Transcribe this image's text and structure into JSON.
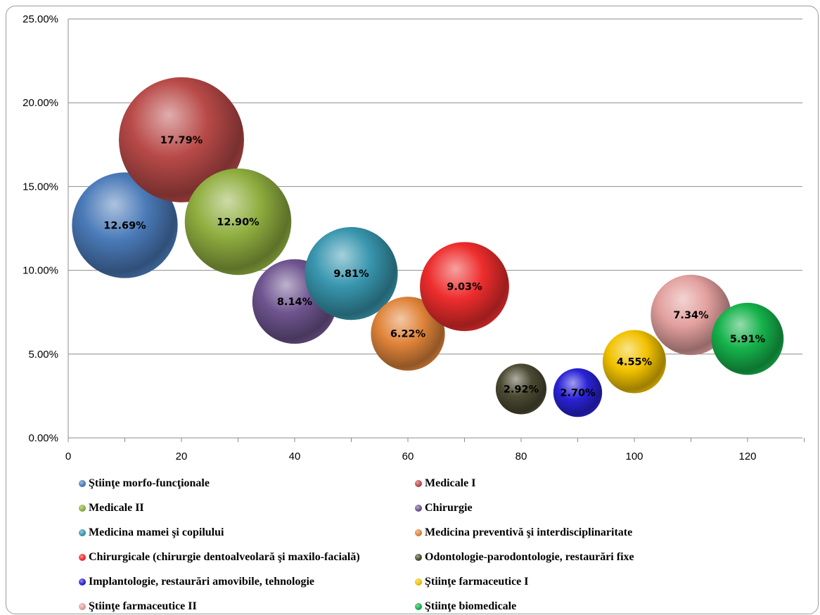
{
  "chart_data": {
    "type": "bubble",
    "title": "",
    "xlabel": "",
    "ylabel": "",
    "xlim": [
      0,
      130
    ],
    "ylim": [
      0,
      25
    ],
    "xticks": [
      "0",
      "20",
      "40",
      "60",
      "80",
      "100",
      "120"
    ],
    "yticks": [
      "0.00%",
      "5.00%",
      "10.00%",
      "15.00%",
      "20.00%",
      "25.00%"
    ],
    "grid": "horizontal",
    "legend_position": "bottom",
    "series": [
      {
        "name": "Ştiinţe morfo-funcţionale",
        "x": 10,
        "y": 12.69,
        "label": "12.69%",
        "color": "#4a7ab8"
      },
      {
        "name": "Medicale I",
        "x": 20,
        "y": 17.79,
        "label": "17.79%",
        "color": "#b84a48"
      },
      {
        "name": "Medicale II",
        "x": 30,
        "y": 12.9,
        "label": "12.90%",
        "color": "#8fae3f"
      },
      {
        "name": "Chirurgie",
        "x": 40,
        "y": 8.14,
        "label": "8.14%",
        "color": "#6e548f"
      },
      {
        "name": "Medicina mamei şi copilului",
        "x": 50,
        "y": 9.81,
        "label": "9.81%",
        "color": "#3896ae"
      },
      {
        "name": "Medicina preventivă şi interdisciplinaritate",
        "x": 60,
        "y": 6.22,
        "label": "6.22%",
        "color": "#e0843a"
      },
      {
        "name": "Chirurgicale (chirurgie dentoalveolară şi maxilo-facială)",
        "x": 70,
        "y": 9.03,
        "label": "9.03%",
        "color": "#ee2d2d"
      },
      {
        "name": "Odontologie-parodontologie, restaurări fixe",
        "x": 80,
        "y": 2.92,
        "label": "2.92%",
        "color": "#4b4a33"
      },
      {
        "name": "Implantologie, restaurări amovibile, tehnologie",
        "x": 90,
        "y": 2.7,
        "label": "2.70%",
        "color": "#2a22d6"
      },
      {
        "name": "Ştiinţe farmaceutice I",
        "x": 100,
        "y": 4.55,
        "label": "4.55%",
        "color": "#f2c200"
      },
      {
        "name": "Ştiinţe farmaceutice II",
        "x": 110,
        "y": 7.34,
        "label": "7.34%",
        "color": "#e2a09e"
      },
      {
        "name": "Ştiinţe biomedicale",
        "x": 120,
        "y": 5.91,
        "label": "5.91%",
        "color": "#15b24b"
      }
    ]
  }
}
